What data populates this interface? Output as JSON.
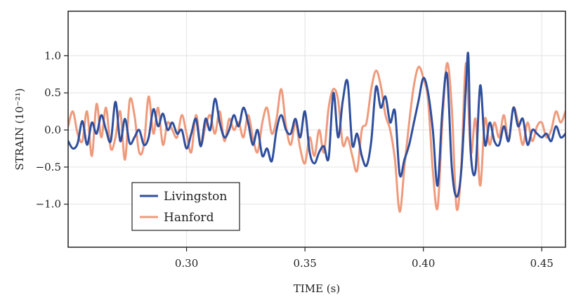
{
  "chart_data": {
    "type": "line",
    "xlabel": "TIME (s)",
    "ylabel": "STRAIN (10⁻²¹)",
    "xlim": [
      0.25,
      0.46
    ],
    "ylim": [
      -1.58,
      1.6
    ],
    "xticks": [
      0.3,
      0.35,
      0.4,
      0.45
    ],
    "xtick_labels": [
      "0.30",
      "0.35",
      "0.40",
      "0.45"
    ],
    "yticks": [
      1.0,
      0.5,
      0.0,
      -0.5,
      -1.0
    ],
    "ytick_labels": [
      "1.0",
      "0.5",
      "0.0",
      "−0.5",
      "−1.0"
    ],
    "grid": true,
    "legend_position": "bottom-left",
    "series": [
      {
        "name": "Livingston",
        "color": "#2f4f9d",
        "x": [
          0.25,
          0.252,
          0.254,
          0.256,
          0.258,
          0.26,
          0.262,
          0.264,
          0.266,
          0.268,
          0.27,
          0.272,
          0.274,
          0.276,
          0.278,
          0.28,
          0.282,
          0.284,
          0.286,
          0.288,
          0.29,
          0.292,
          0.294,
          0.296,
          0.298,
          0.3,
          0.302,
          0.304,
          0.306,
          0.308,
          0.31,
          0.312,
          0.314,
          0.316,
          0.318,
          0.32,
          0.322,
          0.324,
          0.326,
          0.328,
          0.33,
          0.332,
          0.334,
          0.336,
          0.338,
          0.34,
          0.342,
          0.344,
          0.346,
          0.348,
          0.35,
          0.352,
          0.354,
          0.356,
          0.358,
          0.36,
          0.362,
          0.364,
          0.366,
          0.368,
          0.37,
          0.372,
          0.374,
          0.376,
          0.378,
          0.38,
          0.382,
          0.384,
          0.386,
          0.388,
          0.39,
          0.392,
          0.394,
          0.396,
          0.398,
          0.4,
          0.402,
          0.404,
          0.406,
          0.408,
          0.41,
          0.412,
          0.414,
          0.416,
          0.418,
          0.419,
          0.42,
          0.422,
          0.424,
          0.426,
          0.428,
          0.43,
          0.432,
          0.434,
          0.436,
          0.438,
          0.44,
          0.442,
          0.444,
          0.446,
          0.448,
          0.45,
          0.452,
          0.454,
          0.456,
          0.458,
          0.46
        ],
        "y": [
          -0.15,
          -0.25,
          -0.18,
          0.12,
          -0.2,
          0.1,
          -0.05,
          0.2,
          0.0,
          -0.15,
          0.38,
          -0.15,
          0.15,
          -0.18,
          -0.1,
          0.0,
          -0.2,
          -0.1,
          0.28,
          0.05,
          0.22,
          0.0,
          0.1,
          -0.05,
          0.0,
          -0.25,
          -0.05,
          0.15,
          -0.22,
          0.15,
          0.0,
          0.42,
          0.1,
          -0.1,
          0.0,
          0.2,
          0.05,
          0.3,
          0.1,
          -0.2,
          0.0,
          -0.35,
          -0.25,
          -0.42,
          0.0,
          0.2,
          0.0,
          -0.05,
          0.15,
          -0.1,
          0.25,
          -0.3,
          -0.45,
          -0.3,
          -0.22,
          -0.38,
          0.5,
          -0.1,
          0.4,
          0.65,
          -0.2,
          -0.05,
          -0.35,
          -0.48,
          -0.15,
          0.58,
          0.3,
          0.45,
          0.1,
          0.25,
          -0.6,
          -0.4,
          -0.2,
          0.1,
          0.4,
          0.7,
          0.5,
          0.0,
          -0.75,
          0.25,
          0.75,
          -0.5,
          -0.9,
          -0.55,
          0.6,
          1.0,
          -0.3,
          -0.55,
          0.6,
          -0.2,
          0.1,
          -0.15,
          -0.2,
          0.05,
          -0.15,
          0.3,
          0.05,
          0.15,
          -0.2,
          0.0,
          -0.05,
          -0.1,
          -0.05,
          -0.15,
          0.05,
          -0.1,
          -0.05
        ]
      },
      {
        "name": "Hanford",
        "color": "#ef9a7c",
        "x": [
          0.25,
          0.252,
          0.254,
          0.256,
          0.258,
          0.26,
          0.262,
          0.264,
          0.266,
          0.268,
          0.27,
          0.272,
          0.274,
          0.276,
          0.278,
          0.28,
          0.282,
          0.284,
          0.286,
          0.288,
          0.29,
          0.292,
          0.294,
          0.296,
          0.298,
          0.3,
          0.302,
          0.304,
          0.306,
          0.308,
          0.31,
          0.312,
          0.314,
          0.316,
          0.318,
          0.32,
          0.322,
          0.324,
          0.326,
          0.328,
          0.33,
          0.332,
          0.334,
          0.336,
          0.338,
          0.34,
          0.342,
          0.344,
          0.346,
          0.348,
          0.35,
          0.352,
          0.354,
          0.356,
          0.358,
          0.36,
          0.362,
          0.364,
          0.366,
          0.368,
          0.37,
          0.372,
          0.374,
          0.376,
          0.378,
          0.38,
          0.382,
          0.384,
          0.386,
          0.388,
          0.39,
          0.392,
          0.394,
          0.396,
          0.398,
          0.4,
          0.402,
          0.404,
          0.406,
          0.408,
          0.41,
          0.412,
          0.414,
          0.416,
          0.418,
          0.42,
          0.422,
          0.424,
          0.426,
          0.428,
          0.43,
          0.432,
          0.434,
          0.436,
          0.438,
          0.44,
          0.442,
          0.444,
          0.446,
          0.448,
          0.45,
          0.452,
          0.454,
          0.456,
          0.458,
          0.46
        ],
        "y": [
          0.05,
          0.25,
          -0.05,
          -0.15,
          0.25,
          -0.35,
          0.35,
          -0.1,
          0.3,
          -0.25,
          -0.1,
          0.25,
          -0.4,
          0.4,
          0.2,
          -0.3,
          -0.2,
          0.45,
          -0.05,
          0.3,
          -0.2,
          0.1,
          0.0,
          -0.1,
          0.2,
          -0.05,
          -0.3,
          0.2,
          -0.2,
          0.05,
          0.2,
          -0.05,
          0.25,
          -0.15,
          0.15,
          0.0,
          0.1,
          -0.1,
          0.2,
          -0.1,
          -0.3,
          0.1,
          0.3,
          -0.05,
          0.15,
          0.55,
          0.05,
          -0.2,
          0.1,
          -0.25,
          -0.45,
          -0.1,
          -0.35,
          0.0,
          -0.3,
          0.3,
          0.55,
          0.4,
          -0.2,
          -0.1,
          -0.35,
          -0.55,
          0.0,
          0.1,
          0.55,
          0.8,
          0.6,
          0.2,
          0.0,
          -0.4,
          -1.1,
          -0.5,
          0.1,
          0.6,
          0.85,
          0.7,
          0.4,
          -0.55,
          -1.05,
          0.1,
          0.9,
          0.3,
          -1.05,
          -0.5,
          0.9,
          -0.3,
          0.15,
          -0.75,
          0.15,
          -0.2,
          0.1,
          -0.1,
          0.2,
          -0.15,
          0.3,
          0.1,
          -0.2,
          0.1,
          -0.15,
          0.05,
          0.1,
          -0.1,
          0.0,
          0.25,
          0.1,
          0.25
        ]
      }
    ]
  }
}
